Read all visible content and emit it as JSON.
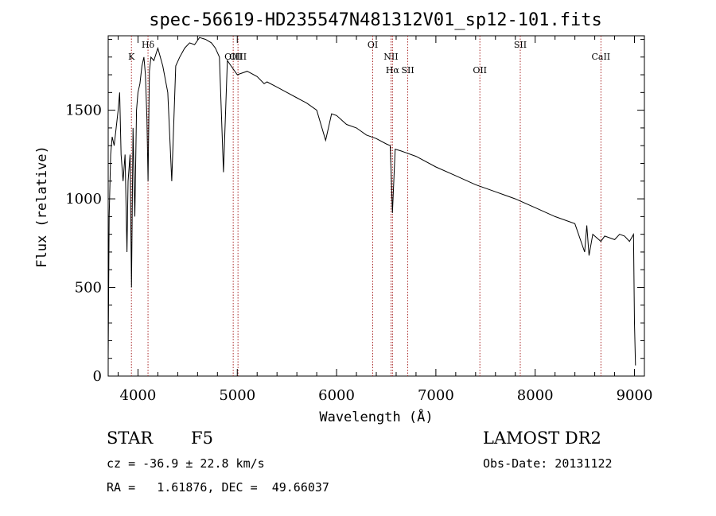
{
  "chart_data": {
    "type": "line",
    "title": "spec-56619-HD235547N481312V01_sp12-101.fits",
    "xlabel": "Wavelength (Å)",
    "ylabel": "Flux (relative)",
    "xlim": [
      3700,
      9100
    ],
    "ylim": [
      0,
      1920
    ],
    "x_ticks": [
      4000,
      5000,
      6000,
      7000,
      8000,
      9000
    ],
    "y_ticks": [
      0,
      500,
      1000,
      1500
    ],
    "grid": false,
    "series": [
      {
        "x": [
          3700,
          3710,
          3725,
          3740,
          3760,
          3780,
          3800,
          3815,
          3830,
          3850,
          3870,
          3889,
          3900,
          3920,
          3935,
          3950,
          3968,
          3985,
          4000,
          4020,
          4040,
          4060,
          4075,
          4090,
          4101,
          4115,
          4130,
          4160,
          4200,
          4250,
          4300,
          4340,
          4380,
          4420,
          4470,
          4520,
          4570,
          4620,
          4680,
          4740,
          4780,
          4820,
          4861,
          4900,
          4950,
          5000,
          5100,
          5200,
          5270,
          5300,
          5400,
          5500,
          5600,
          5700,
          5800,
          5890,
          5950,
          6000,
          6100,
          6200,
          6300,
          6400,
          6500,
          6540,
          6563,
          6590,
          6650,
          6800,
          7000,
          7200,
          7400,
          7600,
          7800,
          8000,
          8200,
          8400,
          8498,
          8520,
          8542,
          8580,
          8662,
          8700,
          8750,
          8800,
          8850,
          8900,
          8950,
          8990,
          9000,
          9010
        ],
        "values": [
          100,
          900,
          1250,
          1350,
          1300,
          1400,
          1500,
          1600,
          1250,
          1100,
          1250,
          700,
          1100,
          1250,
          500,
          1400,
          900,
          1500,
          1600,
          1650,
          1750,
          1800,
          1700,
          1450,
          1100,
          1720,
          1800,
          1780,
          1850,
          1750,
          1600,
          1100,
          1750,
          1800,
          1850,
          1880,
          1870,
          1910,
          1900,
          1880,
          1850,
          1800,
          1150,
          1780,
          1740,
          1700,
          1720,
          1690,
          1650,
          1660,
          1630,
          1600,
          1570,
          1540,
          1500,
          1330,
          1480,
          1470,
          1420,
          1400,
          1360,
          1340,
          1310,
          1300,
          920,
          1280,
          1270,
          1240,
          1180,
          1130,
          1080,
          1040,
          1000,
          950,
          900,
          860,
          700,
          850,
          680,
          800,
          760,
          790,
          780,
          770,
          800,
          790,
          760,
          800,
          300,
          60
        ]
      }
    ],
    "annotations": [
      {
        "label": "K",
        "x": 3934
      },
      {
        "label": "Hδ",
        "x": 4101
      },
      {
        "label": "OIII",
        "x": 4959
      },
      {
        "label": "OIII",
        "x": 5007
      },
      {
        "label": "OI",
        "x": 6364
      },
      {
        "label": "NII",
        "x": 6548
      },
      {
        "label": "Hα",
        "x": 6563
      },
      {
        "label": "SII",
        "x": 6717
      },
      {
        "label": "OII",
        "x": 7443
      },
      {
        "label": "SII",
        "x": 7850
      },
      {
        "label": "CaII",
        "x": 8662
      }
    ]
  },
  "info": {
    "class_label": "STAR",
    "subclass": "F5",
    "survey": "LAMOST DR2",
    "cz_text": "cz = -36.9 ± 22.8 km/s",
    "obs_date_text": "Obs-Date: 20131122",
    "radec_text": "RA =   1.61876, DEC =  49.66037"
  }
}
